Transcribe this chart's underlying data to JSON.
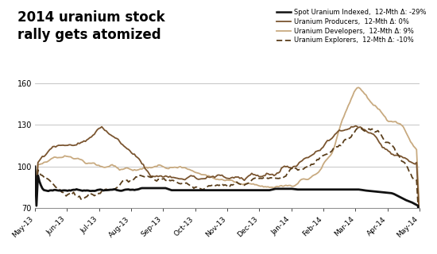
{
  "title": "2014 uranium stock\nrally gets atomized",
  "title_fontsize": 12,
  "title_fontweight": "bold",
  "ylim": [
    70,
    165
  ],
  "yticks": [
    70,
    100,
    130,
    160
  ],
  "background_color": "#ffffff",
  "grid_color": "#bbbbbb",
  "colors": {
    "spot": "#111111",
    "producers": "#7a5530",
    "developers": "#c8aa80",
    "explorers": "#5a3e1b"
  },
  "legend_entries": [
    "Spot Uranium Indexed,  12-Mth Δ: -29%",
    "Uranium Producers,  12-Mth Δ: 0%",
    "Uranium Developers,  12-Mth Δ: 9%",
    "Uranium Explorers,  12-Mth Δ: -10%"
  ],
  "x_tick_labels": [
    "May-13",
    "Jun-13",
    "Jul-13",
    "Aug-13",
    "Sep-13",
    "Oct-13",
    "Nov-13",
    "Dec-13",
    "Jan-14",
    "Feb-14",
    "Mar-14",
    "Apr-14",
    "May-14"
  ],
  "n_points": 260
}
